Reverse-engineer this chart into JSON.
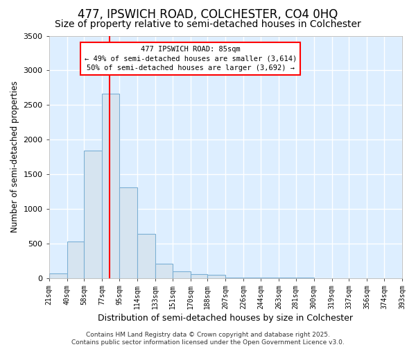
{
  "title": "477, IPSWICH ROAD, COLCHESTER, CO4 0HQ",
  "subtitle": "Size of property relative to semi-detached houses in Colchester",
  "xlabel": "Distribution of semi-detached houses by size in Colchester",
  "ylabel": "Number of semi-detached properties",
  "bin_edges": [
    21,
    40,
    58,
    77,
    95,
    114,
    133,
    151,
    170,
    188,
    207,
    226,
    244,
    263,
    281,
    300,
    319,
    337,
    356,
    374,
    393
  ],
  "bar_heights": [
    65,
    530,
    1840,
    2660,
    1310,
    635,
    210,
    100,
    55,
    45,
    5,
    5,
    5,
    5,
    5,
    0,
    0,
    0,
    0,
    0
  ],
  "bar_color": "#d6e4f0",
  "bar_edge_color": "#7bafd4",
  "plot_bg_color": "#ddeeff",
  "grid_color": "#ffffff",
  "red_line_x": 85,
  "property_label": "477 IPSWICH ROAD: 85sqm",
  "annotation_smaller": "← 49% of semi-detached houses are smaller (3,614)",
  "annotation_larger": "50% of semi-detached houses are larger (3,692) →",
  "ylim": [
    0,
    3500
  ],
  "footer_line1": "Contains HM Land Registry data © Crown copyright and database right 2025.",
  "footer_line2": "Contains public sector information licensed under the Open Government Licence v3.0.",
  "title_fontsize": 12,
  "subtitle_fontsize": 10,
  "tick_labels": [
    "21sqm",
    "40sqm",
    "58sqm",
    "77sqm",
    "95sqm",
    "114sqm",
    "133sqm",
    "151sqm",
    "170sqm",
    "188sqm",
    "207sqm",
    "226sqm",
    "244sqm",
    "263sqm",
    "281sqm",
    "300sqm",
    "319sqm",
    "337sqm",
    "356sqm",
    "374sqm",
    "393sqm"
  ]
}
